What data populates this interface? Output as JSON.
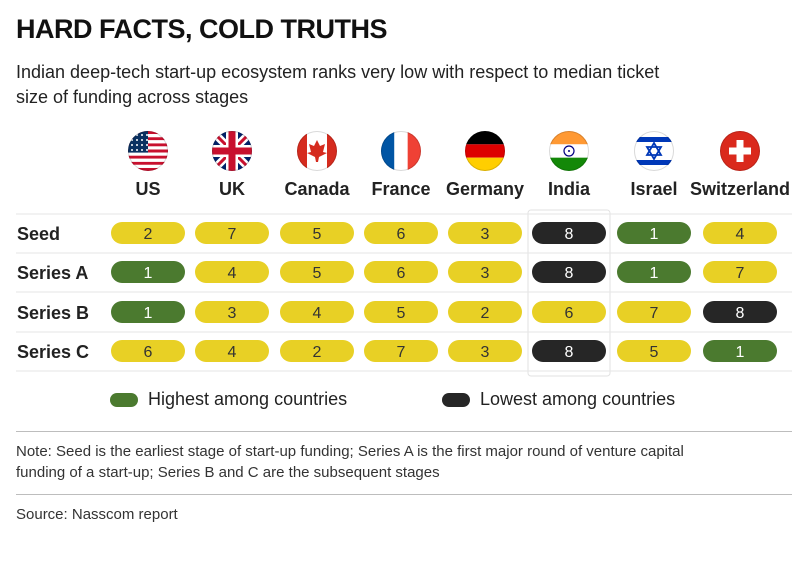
{
  "header": {
    "title": "HARD FACTS, COLD TRUTHS",
    "subtitle": "Indian deep-tech start-up ecosystem ranks very low with respect to median ticket size of funding across stages"
  },
  "chart_data": {
    "type": "table",
    "columns": [
      "US",
      "UK",
      "Canada",
      "France",
      "Germany",
      "India",
      "Israel",
      "Switzerland"
    ],
    "flags": [
      "us-flag-icon",
      "uk-flag-icon",
      "canada-flag-icon",
      "france-flag-icon",
      "germany-flag-icon",
      "india-flag-icon",
      "israel-flag-icon",
      "switzerland-flag-icon"
    ],
    "highlight_column": "India",
    "rows": [
      {
        "label": "Seed",
        "values": [
          2,
          7,
          5,
          6,
          3,
          8,
          1,
          4
        ]
      },
      {
        "label": "Series A",
        "values": [
          1,
          4,
          5,
          6,
          3,
          8,
          1,
          7
        ]
      },
      {
        "label": "Series B",
        "values": [
          1,
          3,
          4,
          5,
          2,
          6,
          7,
          8
        ]
      },
      {
        "label": "Series C",
        "values": [
          6,
          4,
          2,
          7,
          3,
          8,
          5,
          1
        ]
      }
    ],
    "colors": {
      "default": "#e8d025",
      "highest": "#4b7a2f",
      "lowest": "#262626",
      "default_text": "#333333",
      "highest_text": "#ffffff",
      "lowest_text": "#ffffff"
    }
  },
  "legend": {
    "highest_label": "Highest among countries",
    "lowest_label": "Lowest among countries"
  },
  "note": "Note: Seed is the earliest stage of start-up funding; Series A is the first major round of venture capital funding of a start-up; Series B and C are the subsequent stages",
  "source": "Source: Nasscom report"
}
